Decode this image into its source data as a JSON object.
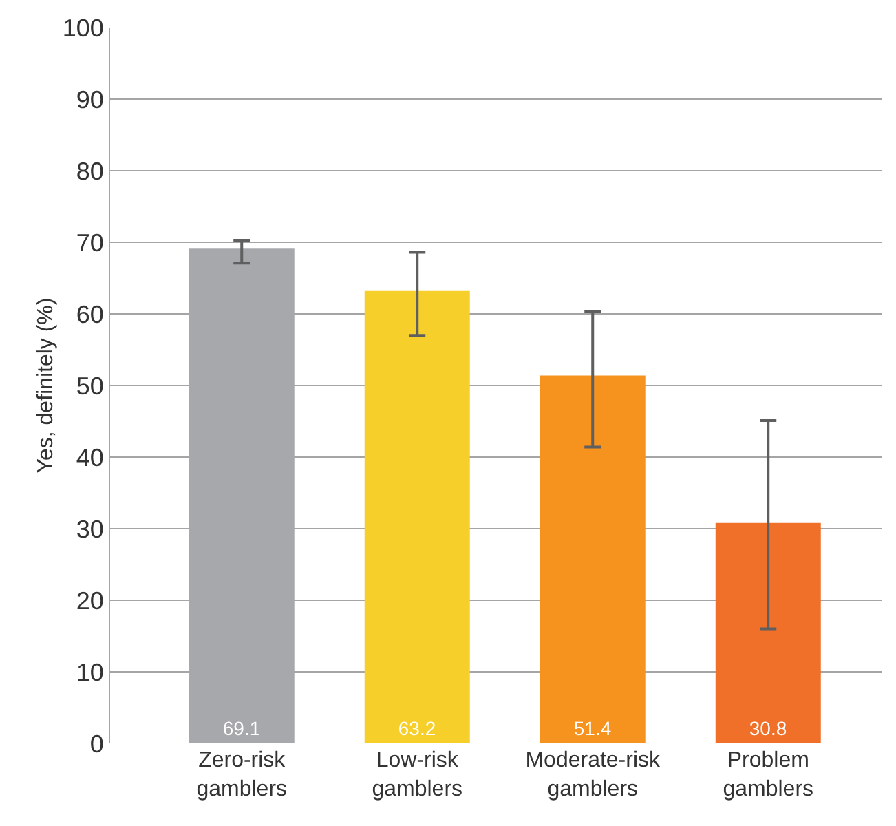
{
  "chart_data": {
    "type": "bar",
    "ylabel": "Yes, definitely (%)",
    "categories": [
      "Zero-risk gamblers",
      "Low-risk gamblers",
      "Moderate-risk gamblers",
      "Problem gamblers"
    ],
    "values": [
      69.1,
      63.2,
      51.4,
      30.8
    ],
    "colors": [
      "#a7a8ab",
      "#f6cf2a",
      "#f6931e",
      "#f07029"
    ],
    "errors": [
      [
        67.1,
        70.3
      ],
      [
        57.0,
        68.6
      ],
      [
        41.4,
        60.3
      ],
      [
        16.0,
        45.1
      ]
    ],
    "data_labels": true,
    "ylim": [
      0,
      100
    ],
    "yticks": [
      0,
      10,
      20,
      30,
      40,
      50,
      60,
      70,
      80,
      90,
      100
    ],
    "grid": "y"
  }
}
